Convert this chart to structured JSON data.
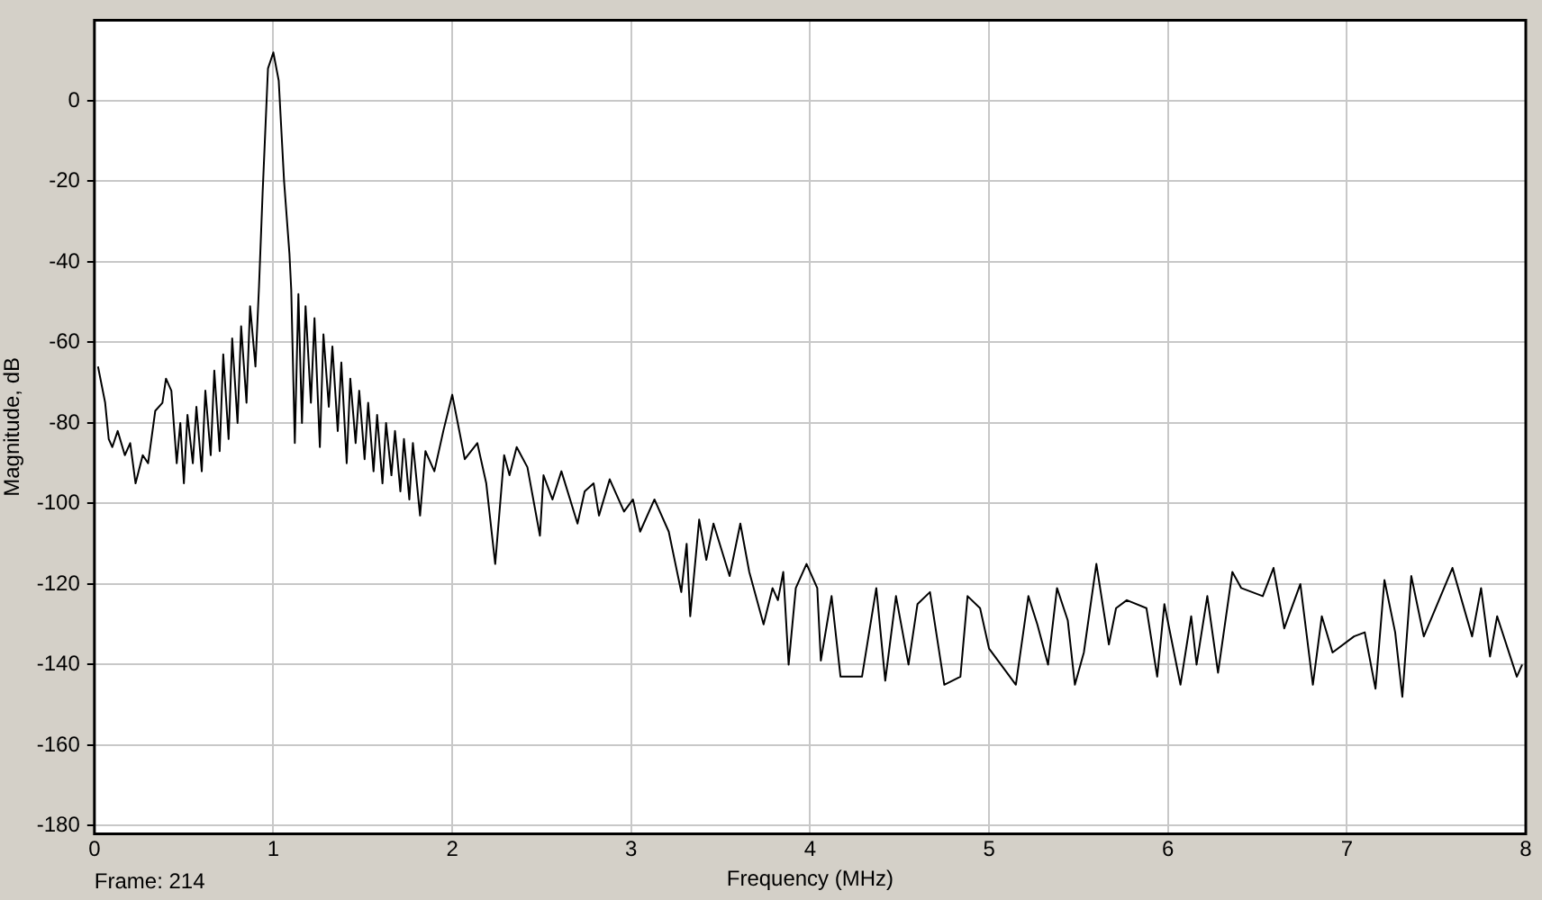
{
  "chart_data": {
    "type": "line",
    "xlabel": "Frequency (MHz)",
    "ylabel": "Magnitude, dB",
    "annotations": [
      "Frame: 214"
    ],
    "x": [
      0.02,
      0.06,
      0.08,
      0.1,
      0.13,
      0.17,
      0.2,
      0.23,
      0.27,
      0.3,
      0.34,
      0.38,
      0.4,
      0.43,
      0.46,
      0.48,
      0.5,
      0.52,
      0.55,
      0.57,
      0.6,
      0.62,
      0.65,
      0.67,
      0.7,
      0.72,
      0.75,
      0.77,
      0.8,
      0.82,
      0.85,
      0.87,
      0.9,
      0.92,
      0.94,
      0.97,
      1.0,
      1.03,
      1.06,
      1.09,
      1.1,
      1.12,
      1.14,
      1.16,
      1.18,
      1.21,
      1.23,
      1.26,
      1.28,
      1.31,
      1.33,
      1.36,
      1.38,
      1.41,
      1.43,
      1.46,
      1.48,
      1.51,
      1.53,
      1.56,
      1.58,
      1.61,
      1.63,
      1.66,
      1.68,
      1.71,
      1.73,
      1.76,
      1.78,
      1.82,
      1.85,
      1.9,
      1.95,
      2.0,
      2.07,
      2.14,
      2.19,
      2.24,
      2.29,
      2.32,
      2.36,
      2.42,
      2.49,
      2.51,
      2.56,
      2.61,
      2.7,
      2.74,
      2.79,
      2.82,
      2.88,
      2.96,
      3.01,
      3.05,
      3.13,
      3.21,
      3.28,
      3.31,
      3.33,
      3.38,
      3.42,
      3.46,
      3.55,
      3.61,
      3.66,
      3.74,
      3.79,
      3.82,
      3.85,
      3.88,
      3.92,
      3.98,
      4.04,
      4.06,
      4.12,
      4.17,
      4.29,
      4.37,
      4.42,
      4.48,
      4.55,
      4.6,
      4.67,
      4.75,
      4.84,
      4.88,
      4.95,
      5.0,
      5.1,
      5.15,
      5.22,
      5.27,
      5.33,
      5.38,
      5.44,
      5.48,
      5.53,
      5.6,
      5.67,
      5.71,
      5.77,
      5.88,
      5.94,
      5.98,
      6.07,
      6.13,
      6.16,
      6.22,
      6.28,
      6.36,
      6.41,
      6.53,
      6.59,
      6.65,
      6.74,
      6.81,
      6.86,
      6.92,
      7.04,
      7.1,
      7.16,
      7.21,
      7.27,
      7.31,
      7.36,
      7.43,
      7.59,
      7.7,
      7.75,
      7.8,
      7.84,
      7.95,
      7.98
    ],
    "series": [
      {
        "color": "#000000",
        "values": [
          -66,
          -75,
          -84,
          -86,
          -82,
          -88,
          -85,
          -95,
          -88,
          -90,
          -77,
          -75,
          -69,
          -72,
          -90,
          -80,
          -95,
          -78,
          -90,
          -76,
          -92,
          -72,
          -88,
          -67,
          -87,
          -63,
          -84,
          -59,
          -80,
          -56,
          -75,
          -51,
          -66,
          -46,
          -23,
          8,
          12,
          5,
          -20,
          -38,
          -47,
          -85,
          -48,
          -80,
          -51,
          -75,
          -54,
          -86,
          -58,
          -76,
          -61,
          -82,
          -65,
          -90,
          -69,
          -85,
          -72,
          -89,
          -75,
          -92,
          -78,
          -95,
          -80,
          -93,
          -82,
          -97,
          -84,
          -99,
          -85,
          -103,
          -87,
          -92,
          -82,
          -73,
          -89,
          -85,
          -95,
          -115,
          -88,
          -93,
          -86,
          -91,
          -108,
          -93,
          -99,
          -92,
          -105,
          -97,
          -95,
          -103,
          -94,
          -102,
          -99,
          -107,
          -99,
          -107,
          -122,
          -110,
          -128,
          -104,
          -114,
          -105,
          -118,
          -105,
          -117,
          -130,
          -121,
          -124,
          -117,
          -140,
          -121,
          -115,
          -121,
          -139,
          -123,
          -143,
          -143,
          -121,
          -144,
          -123,
          -140,
          -125,
          -122,
          -145,
          -143,
          -123,
          -126,
          -136,
          -142,
          -145,
          -123,
          -130,
          -140,
          -121,
          -129,
          -145,
          -137,
          -115,
          -135,
          -126,
          -124,
          -126,
          -143,
          -125,
          -145,
          -128,
          -140,
          -123,
          -142,
          -117,
          -121,
          -123,
          -116,
          -131,
          -120,
          -145,
          -128,
          -137,
          -133,
          -132,
          -146,
          -119,
          -132,
          -148,
          -118,
          -133,
          -116,
          -133,
          -121,
          -138,
          -128,
          -143,
          -140
        ]
      }
    ],
    "xlim": [
      0,
      8
    ],
    "xticks": [
      0,
      1,
      2,
      3,
      4,
      5,
      6,
      7,
      8
    ],
    "ylim": [
      -182,
      20
    ],
    "yticks": [
      -180,
      -160,
      -140,
      -120,
      -100,
      -80,
      -60,
      -40,
      -20,
      0
    ],
    "grid": true,
    "legend": false,
    "marker": "none",
    "line_style": "solid"
  }
}
